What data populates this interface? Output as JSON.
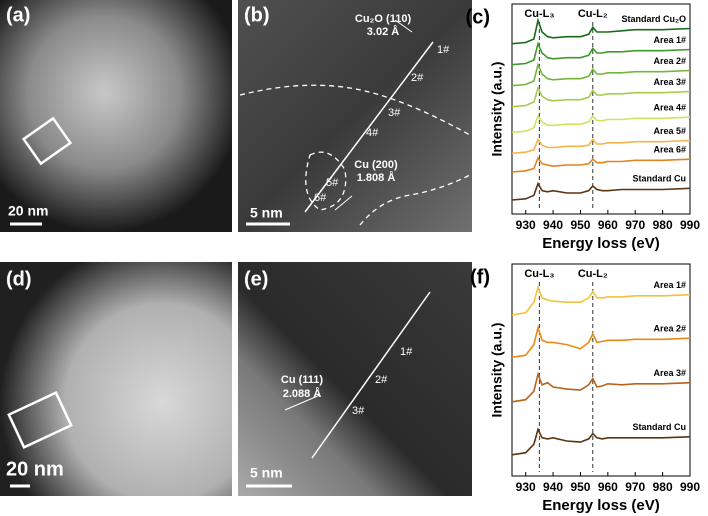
{
  "panels": {
    "a": {
      "label": "(a)",
      "scale": "20 nm"
    },
    "b": {
      "label": "(b)",
      "top_plane": "Cu₂O (110)",
      "top_spacing": "3.02 Å",
      "bottom_plane": "Cu (200)",
      "bottom_spacing": "1.808 Å",
      "scale": "5 nm",
      "points": [
        "1#",
        "2#",
        "3#",
        "4#",
        "5#",
        "6#"
      ]
    },
    "d": {
      "label": "(d)",
      "scale": "20 nm"
    },
    "e": {
      "label": "(e)",
      "plane": "Cu (111)",
      "spacing": "2.088 Å",
      "scale": "5 nm",
      "points": [
        "1#",
        "2#",
        "3#"
      ]
    }
  },
  "chart_data": [
    {
      "type": "line",
      "panel": "(c)",
      "xlabel": "Energy loss (eV)",
      "ylabel": "Intensity (a.u.)",
      "xlim": [
        925,
        990
      ],
      "ylim": [
        1,
        10
      ],
      "xticks": [
        930,
        940,
        950,
        960,
        970,
        980,
        990
      ],
      "annotations": [
        {
          "text": "Cu-L₃",
          "x": 935
        },
        {
          "text": "Cu-L₂",
          "x": 954.5
        }
      ],
      "x": [
        925,
        930,
        933,
        934.5,
        936,
        938,
        940,
        945,
        950,
        953,
        954.5,
        956,
        958,
        960,
        965,
        970,
        980,
        990
      ],
      "series": [
        {
          "name": "Standard Cu₂O",
          "color": "#1b6a1b",
          "values": [
            8.3,
            8.35,
            8.5,
            9.3,
            8.8,
            8.6,
            8.55,
            8.6,
            8.6,
            8.7,
            9.0,
            8.8,
            8.8,
            8.8,
            8.85,
            8.9,
            8.9,
            8.95
          ]
        },
        {
          "name": "Area 1#",
          "color": "#3f9a2c",
          "values": [
            7.4,
            7.45,
            7.6,
            8.3,
            7.9,
            7.7,
            7.65,
            7.7,
            7.7,
            7.8,
            8.1,
            7.9,
            7.9,
            7.95,
            7.95,
            8.0,
            8.0,
            8.05
          ]
        },
        {
          "name": "Area 2#",
          "color": "#74b63c",
          "values": [
            6.5,
            6.55,
            6.7,
            7.4,
            7.0,
            6.8,
            6.75,
            6.8,
            6.8,
            6.9,
            7.2,
            7.0,
            7.0,
            7.05,
            7.05,
            7.1,
            7.1,
            7.15
          ]
        },
        {
          "name": "Area 3#",
          "color": "#a6cc4c",
          "values": [
            5.6,
            5.65,
            5.8,
            6.4,
            6.05,
            5.9,
            5.85,
            5.9,
            5.9,
            6.0,
            6.3,
            6.1,
            6.1,
            6.15,
            6.15,
            6.2,
            6.2,
            6.25
          ]
        },
        {
          "name": "Area 4#",
          "color": "#d4e262",
          "values": [
            4.5,
            4.55,
            4.7,
            5.2,
            4.95,
            4.8,
            4.8,
            4.85,
            4.85,
            4.95,
            5.2,
            5.0,
            5.0,
            5.05,
            5.05,
            5.1,
            5.1,
            5.15
          ]
        },
        {
          "name": "Area 5#",
          "color": "#f4b648",
          "values": [
            3.6,
            3.65,
            3.75,
            4.2,
            3.95,
            3.85,
            3.85,
            3.9,
            3.9,
            3.95,
            4.2,
            4.0,
            4.0,
            4.05,
            4.05,
            4.1,
            4.1,
            4.15
          ]
        },
        {
          "name": "Area 6#",
          "color": "#de8420",
          "values": [
            2.8,
            2.85,
            2.95,
            3.4,
            3.15,
            3.1,
            3.05,
            3.1,
            3.1,
            3.15,
            3.35,
            3.2,
            3.2,
            3.25,
            3.25,
            3.3,
            3.3,
            3.35
          ]
        },
        {
          "name": "Standard Cu",
          "color": "#5a3512",
          "values": [
            1.6,
            1.65,
            1.8,
            2.3,
            2.0,
            1.95,
            2.0,
            1.9,
            1.9,
            2.0,
            2.2,
            2.05,
            2.0,
            2.0,
            2.05,
            2.05,
            2.05,
            2.1
          ]
        }
      ]
    },
    {
      "type": "line",
      "panel": "(f)",
      "xlabel": "Energy loss (eV)",
      "ylabel": "Intensity (a.u.)",
      "xlim": [
        925,
        990
      ],
      "ylim": [
        0,
        10
      ],
      "xticks": [
        930,
        940,
        950,
        960,
        970,
        980,
        990
      ],
      "annotations": [
        {
          "text": "Cu-L₃",
          "x": 935
        },
        {
          "text": "Cu-L₂",
          "x": 954.5
        }
      ],
      "x": [
        925,
        930,
        933,
        934.5,
        936,
        938,
        940,
        945,
        950,
        953,
        954.5,
        956,
        958,
        960,
        965,
        970,
        980,
        990
      ],
      "series": [
        {
          "name": "Area 1#",
          "color": "#f2c23a",
          "values": [
            7.6,
            7.7,
            8.2,
            8.9,
            8.4,
            8.3,
            8.25,
            8.2,
            8.2,
            8.4,
            8.7,
            8.4,
            8.4,
            8.45,
            8.45,
            8.5,
            8.5,
            8.55
          ]
        },
        {
          "name": "Area 2#",
          "color": "#e98a12",
          "values": [
            5.6,
            5.7,
            6.2,
            7.0,
            6.4,
            6.3,
            6.3,
            6.2,
            6.0,
            6.3,
            6.7,
            6.3,
            6.35,
            6.4,
            6.4,
            6.45,
            6.45,
            6.5
          ]
        },
        {
          "name": "Area 3#",
          "color": "#b8641a",
          "values": [
            3.5,
            3.6,
            4.0,
            4.8,
            4.3,
            4.4,
            4.2,
            4.1,
            4.05,
            4.3,
            4.6,
            4.2,
            4.25,
            4.35,
            4.3,
            4.35,
            4.35,
            4.4
          ]
        },
        {
          "name": "Standard Cu",
          "color": "#5a3512",
          "values": [
            1.0,
            1.1,
            1.5,
            2.2,
            1.8,
            1.75,
            1.8,
            1.65,
            1.6,
            1.75,
            2.0,
            1.8,
            1.75,
            1.8,
            1.8,
            1.8,
            1.8,
            1.85
          ]
        }
      ]
    }
  ]
}
